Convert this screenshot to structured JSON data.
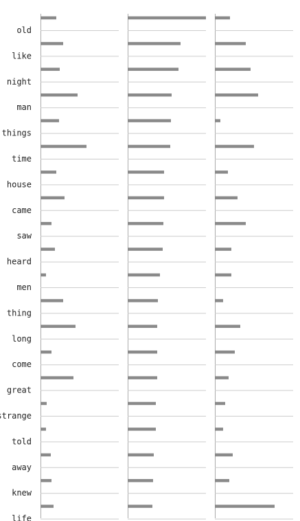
{
  "chart_data": {
    "type": "bar",
    "orientation": "horizontal",
    "layout": "small-multiples",
    "title": "",
    "xlabel": "",
    "ylabel": "",
    "grid": false,
    "bar_color": "#8a8a8a",
    "categories": [
      "old",
      "like",
      "night",
      "man",
      "things",
      "time",
      "house",
      "came",
      "saw",
      "heard",
      "men",
      "thing",
      "long",
      "come",
      "great",
      "strange",
      "told",
      "away",
      "knew",
      "life"
    ],
    "series": [
      {
        "values": [
          23,
          33,
          28,
          54,
          27,
          67,
          23,
          35,
          16,
          21,
          8,
          33,
          51,
          16,
          48,
          9,
          8,
          15,
          16,
          19
        ]
      },
      {
        "values": [
          114,
          77,
          74,
          64,
          63,
          62,
          53,
          53,
          52,
          51,
          47,
          44,
          43,
          43,
          43,
          41,
          41,
          38,
          37,
          36
        ]
      },
      {
        "values": [
          22,
          45,
          52,
          63,
          8,
          57,
          19,
          33,
          45,
          24,
          24,
          12,
          37,
          29,
          20,
          15,
          12,
          26,
          21,
          87
        ]
      }
    ],
    "xlim": [
      0,
      114
    ]
  }
}
